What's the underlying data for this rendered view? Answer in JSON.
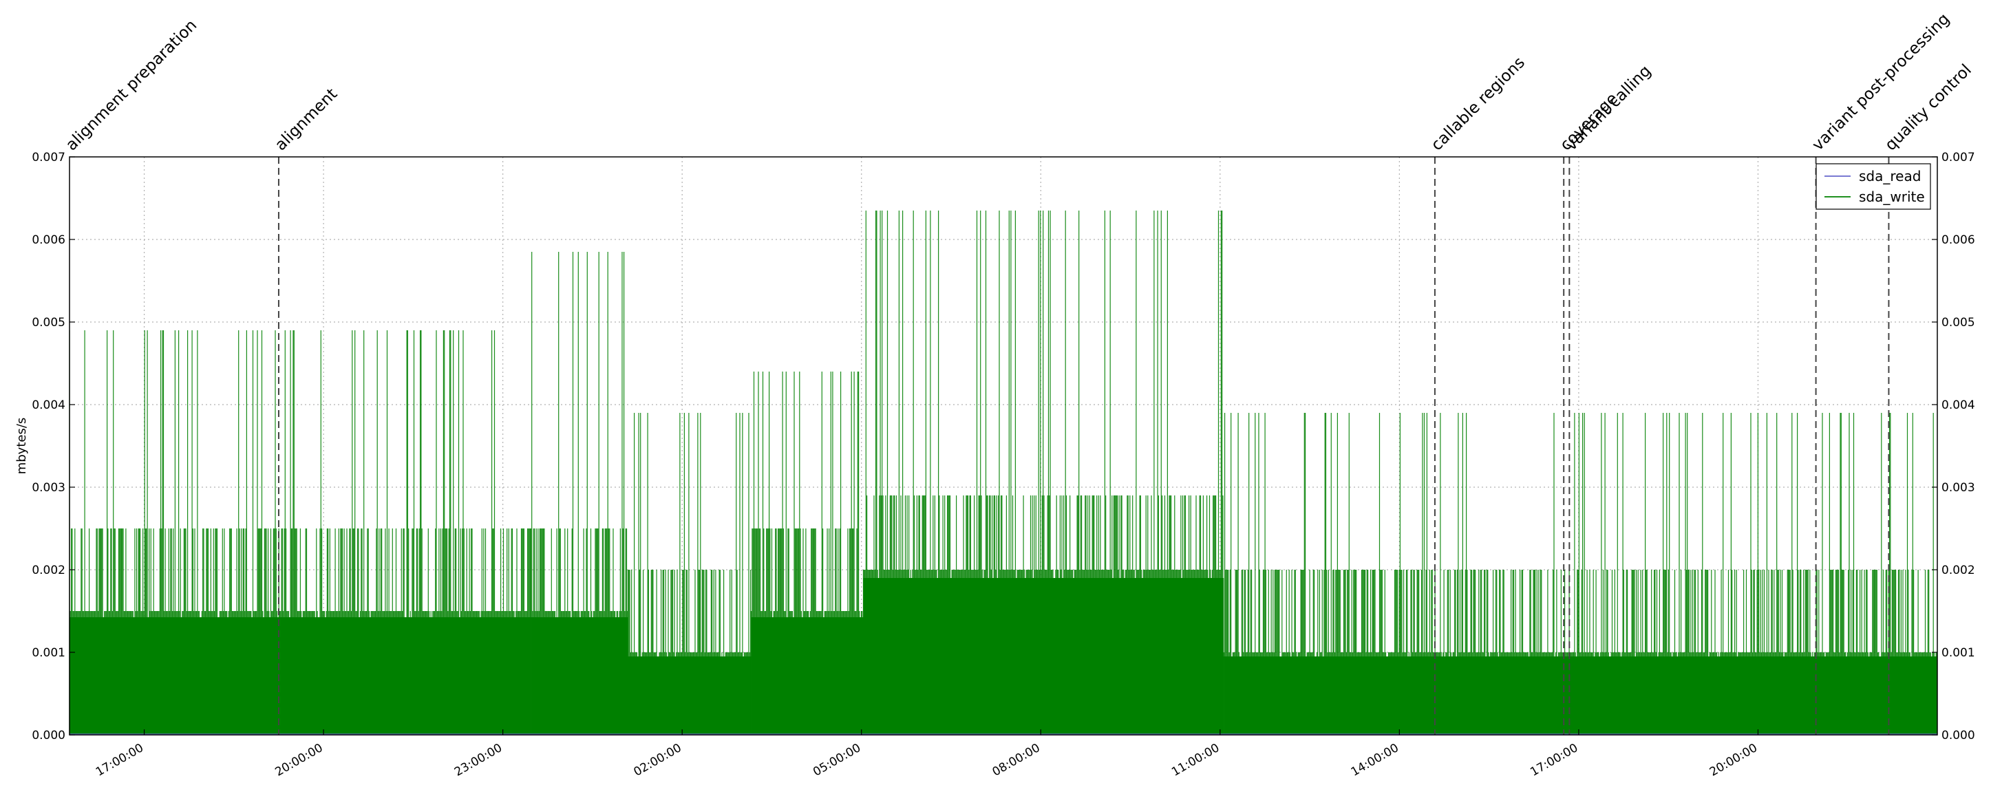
{
  "chart_data": {
    "type": "line",
    "title": "",
    "xlabel": "",
    "ylabel": "mbytes/s",
    "ylim": [
      0,
      0.007
    ],
    "y_ticks": [
      "0.000",
      "0.001",
      "0.002",
      "0.003",
      "0.004",
      "0.005",
      "0.006",
      "0.007"
    ],
    "xlim_hours": [
      15.4,
      25.85
    ],
    "x_ticks": [
      {
        "label": "17:00:00",
        "hour": 16.0
      },
      {
        "label": "20:00:00",
        "hour": 19.0
      },
      {
        "label": "23:00:00",
        "hour": 22.0
      },
      {
        "label": "02:00:00",
        "hour": 1.0
      },
      {
        "label": "05:00:00",
        "hour": 4.0
      },
      {
        "label": "08:00:00",
        "hour": 7.0
      },
      {
        "label": "11:00:00",
        "hour": 10.0
      },
      {
        "label": "14:00:00",
        "hour": 13.0
      },
      {
        "label": "17:00:00",
        "hour": 16.0
      },
      {
        "label": "20:00:00",
        "hour": 19.0
      }
    ],
    "x_tick_fractions": [
      0.04,
      0.136,
      0.232,
      0.328,
      0.424,
      0.52,
      0.616,
      0.712,
      0.808,
      0.904
    ],
    "grid": true,
    "legend_position": "top-right",
    "series": [
      {
        "name": "sda_read",
        "color": "#6666cc",
        "note_values": "near zero throughout"
      },
      {
        "name": "sda_write",
        "color": "#008000",
        "segments": [
          {
            "start": 0.0,
            "end": 0.247,
            "base": 0.0015,
            "mid": 0.0025,
            "peak": 0.0049
          },
          {
            "start": 0.247,
            "end": 0.299,
            "base": 0.0015,
            "mid": 0.0025,
            "peak": 0.00585
          },
          {
            "start": 0.299,
            "end": 0.365,
            "base": 0.001,
            "mid": 0.002,
            "peak": 0.0039
          },
          {
            "start": 0.365,
            "end": 0.425,
            "base": 0.0015,
            "mid": 0.0025,
            "peak": 0.0044
          },
          {
            "start": 0.425,
            "end": 0.618,
            "base": 0.002,
            "mid": 0.0029,
            "peak": 0.00635
          },
          {
            "start": 0.618,
            "end": 1.0,
            "base": 0.001,
            "mid": 0.002,
            "peak": 0.0039
          }
        ]
      }
    ],
    "annotations": [
      {
        "label": "alignment preparation",
        "fraction": 0.0
      },
      {
        "label": "alignment",
        "fraction": 0.112
      },
      {
        "label": "callable regions",
        "fraction": 0.731
      },
      {
        "label": "coverage",
        "fraction": 0.8
      },
      {
        "label": "variant calling",
        "fraction": 0.803
      },
      {
        "label": "variant post-processing",
        "fraction": 0.935
      },
      {
        "label": "quality control",
        "fraction": 0.974
      }
    ]
  },
  "colors": {
    "read": "#6666cc",
    "write": "#008000",
    "grid": "#b0b0b0",
    "axis": "#000000"
  }
}
